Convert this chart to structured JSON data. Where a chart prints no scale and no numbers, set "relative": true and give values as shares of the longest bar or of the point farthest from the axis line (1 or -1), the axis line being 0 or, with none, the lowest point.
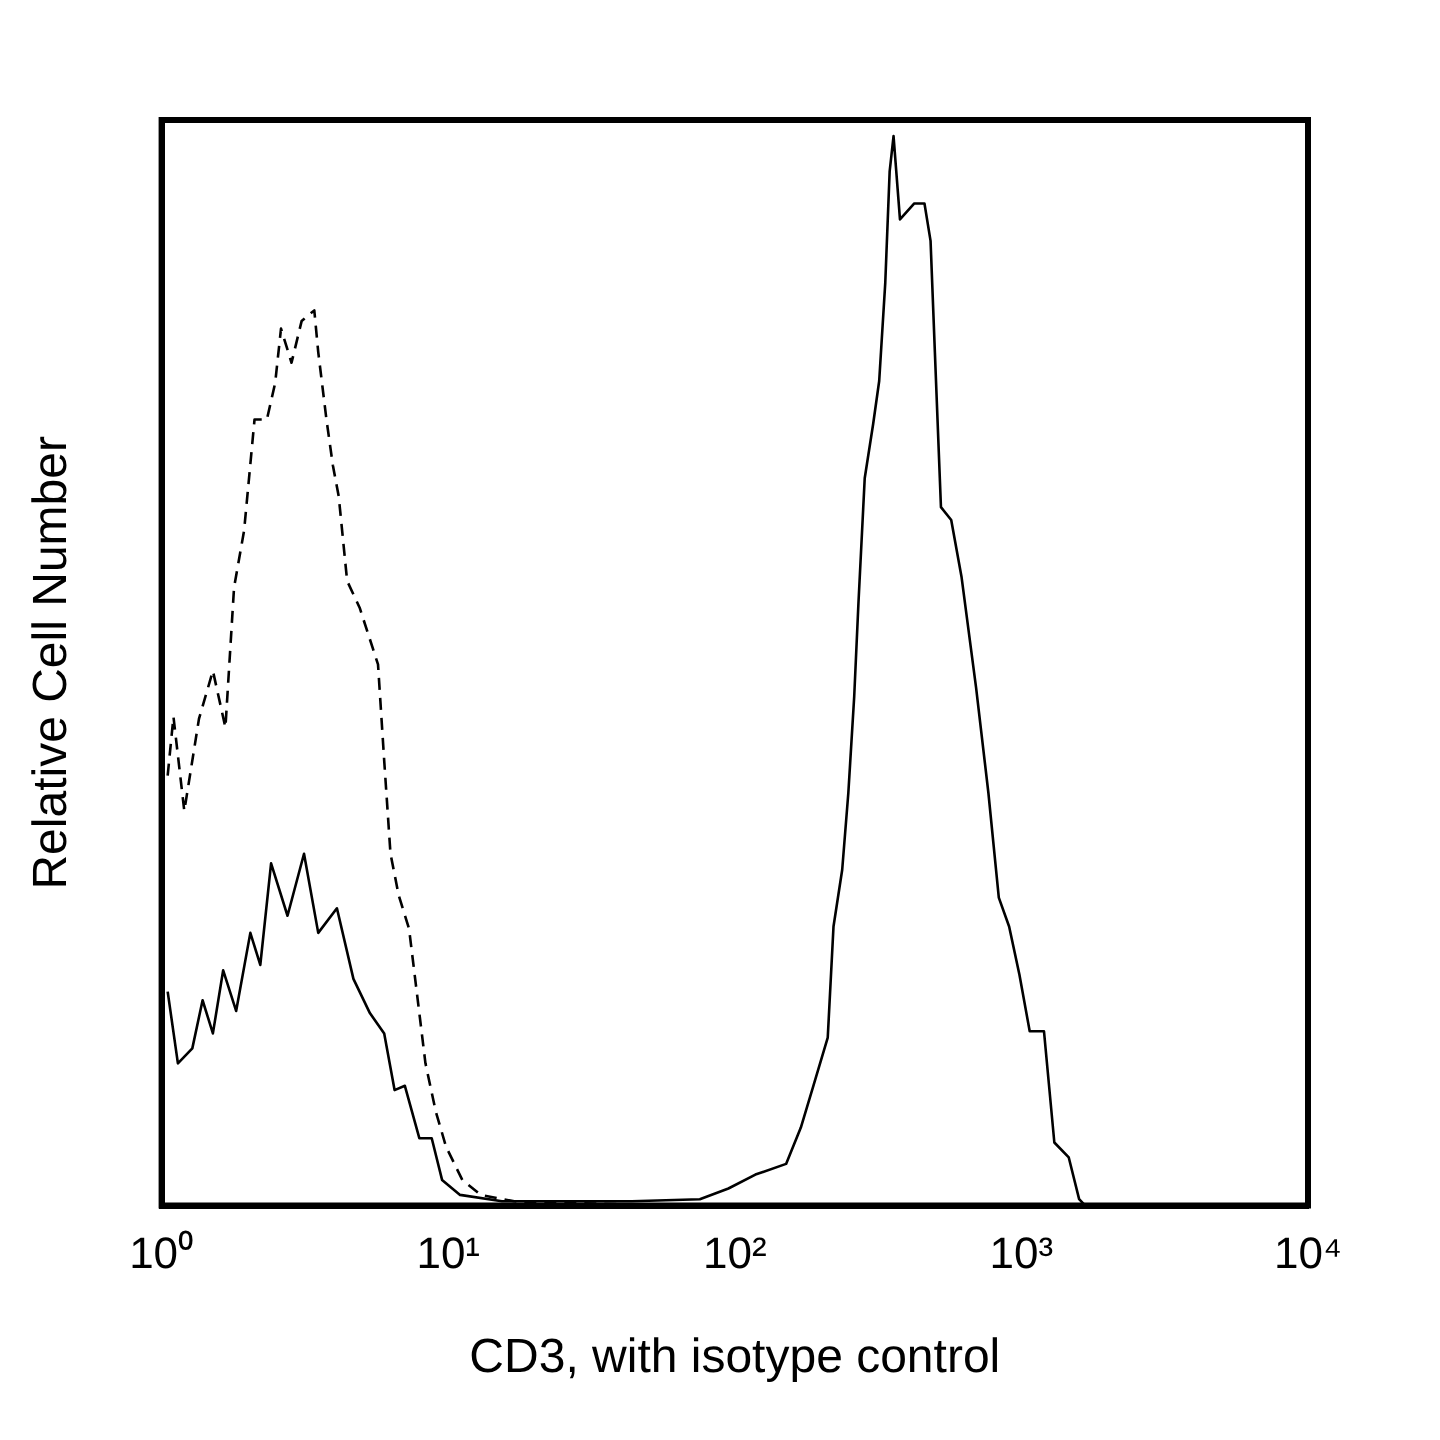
{
  "chart_data": {
    "type": "line",
    "relative": true,
    "xlabel": "CD3, with isotype control",
    "ylabel": "Relative Cell Number",
    "log": "x",
    "grid": false,
    "legend": false,
    "marker": "none",
    "xlim": [
      1,
      10000
    ],
    "xticks": [
      {
        "value": 1,
        "label": "10⁰"
      },
      {
        "value": 10,
        "label": "10¹"
      },
      {
        "value": 100,
        "label": "10²"
      },
      {
        "value": 1000,
        "label": "10³"
      },
      {
        "value": 10000,
        "label": "10⁴"
      }
    ],
    "series": [
      {
        "color": "#000000",
        "line_style": "solid",
        "x": [
          1.05,
          1.14,
          1.28,
          1.39,
          1.51,
          1.64,
          1.82,
          2.04,
          2.21,
          2.41,
          2.75,
          3.14,
          3.52,
          4.09,
          4.67,
          5.33,
          5.98,
          6.5,
          7.06,
          7.93,
          8.76,
          9.52,
          11,
          15.4,
          43.7,
          75.5,
          95,
          118,
          151,
          170,
          188,
          211,
          221,
          237,
          249,
          261,
          270,
          284,
          304,
          319,
          335,
          347,
          358,
          377,
          423,
          459,
          482,
          499,
          524,
          569,
          618,
          695,
          767,
          834,
          906,
          984,
          1069,
          1199,
          1303,
          1463,
          1590,
          1671
        ],
        "values": [
          0.2,
          0.133,
          0.147,
          0.192,
          0.161,
          0.22,
          0.182,
          0.255,
          0.225,
          0.32,
          0.271,
          0.329,
          0.255,
          0.278,
          0.212,
          0.18,
          0.161,
          0.108,
          0.112,
          0.063,
          0.063,
          0.024,
          0.01,
          0.004,
          0.004,
          0.006,
          0.016,
          0.029,
          0.039,
          0.073,
          0.112,
          0.157,
          0.261,
          0.314,
          0.386,
          0.476,
          0.563,
          0.68,
          0.731,
          0.771,
          0.863,
          0.967,
          1,
          0.922,
          0.937,
          0.937,
          0.902,
          0.798,
          0.653,
          0.641,
          0.588,
          0.484,
          0.386,
          0.288,
          0.261,
          0.216,
          0.163,
          0.163,
          0.059,
          0.045,
          0.006,
          0
        ]
      },
      {
        "color": "#000000",
        "line_style": "dashed",
        "x": [
          1.05,
          1.1,
          1.2,
          1.35,
          1.51,
          1.67,
          1.79,
          1.94,
          2.11,
          2.33,
          2.49,
          2.61,
          2.84,
          3.08,
          3.41,
          3.52,
          3.76,
          3.96,
          4.15,
          4.44,
          4.91,
          5.69,
          5.98,
          6.29,
          6.72,
          7.3,
          7.93,
          8.33,
          9.05,
          9.83,
          11.2,
          13,
          17,
          60.8
        ],
        "values": [
          0.402,
          0.457,
          0.369,
          0.455,
          0.5,
          0.447,
          0.578,
          0.631,
          0.735,
          0.735,
          0.769,
          0.82,
          0.788,
          0.827,
          0.837,
          0.798,
          0.735,
          0.692,
          0.663,
          0.584,
          0.559,
          0.506,
          0.416,
          0.329,
          0.29,
          0.259,
          0.18,
          0.133,
          0.088,
          0.055,
          0.024,
          0.01,
          0.004,
          0
        ]
      }
    ]
  }
}
